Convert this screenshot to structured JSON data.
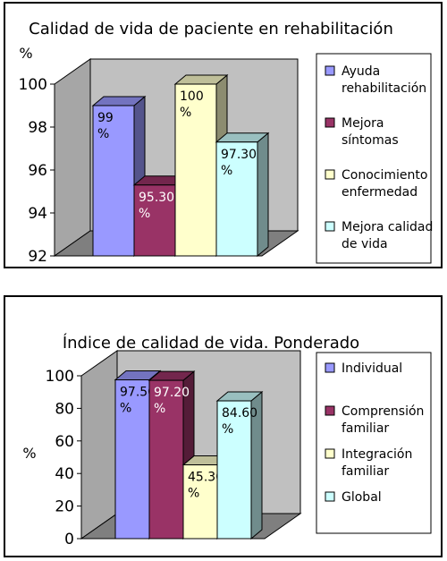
{
  "chart_data": [
    {
      "type": "bar",
      "title": "Calidad de vida de paciente en rehabilitación",
      "ylabel": "%",
      "xlabel": "",
      "ylim": [
        92,
        100
      ],
      "yticks": [
        "92",
        "94",
        "96",
        "98",
        "100"
      ],
      "grid": false,
      "legend_position": "right",
      "series": [
        {
          "name": "Ayuda rehabilitación",
          "value": 99,
          "label": "99 %",
          "color": "#9999ff"
        },
        {
          "name": "Mejora síntomas",
          "value": 95.3,
          "label": "95.30 %",
          "color": "#993366"
        },
        {
          "name": "Conocimiento enfermedad",
          "value": 100,
          "label": "100 %",
          "color": "#ffffcc"
        },
        {
          "name": "Mejora calidad de vida",
          "value": 97.3,
          "label": "97.30 %",
          "color": "#ccffff"
        }
      ]
    },
    {
      "type": "bar",
      "title": "Índice de calidad de vida. Ponderado",
      "ylabel": "%",
      "xlabel": "",
      "ylim": [
        0,
        100
      ],
      "yticks": [
        "0",
        "20",
        "40",
        "60",
        "80",
        "100"
      ],
      "grid": false,
      "legend_position": "right",
      "series": [
        {
          "name": "Individual",
          "value": 97.5,
          "label": "97.50 %",
          "color": "#9999ff"
        },
        {
          "name": "Comprensión familiar",
          "value": 97.2,
          "label": "97.20 %",
          "color": "#993366"
        },
        {
          "name": "Integración familiar",
          "value": 45.3,
          "label": "45.30 %",
          "color": "#ffffcc"
        },
        {
          "name": "Global",
          "value": 84.6,
          "label": "84.60 %",
          "color": "#ccffff"
        }
      ]
    }
  ]
}
